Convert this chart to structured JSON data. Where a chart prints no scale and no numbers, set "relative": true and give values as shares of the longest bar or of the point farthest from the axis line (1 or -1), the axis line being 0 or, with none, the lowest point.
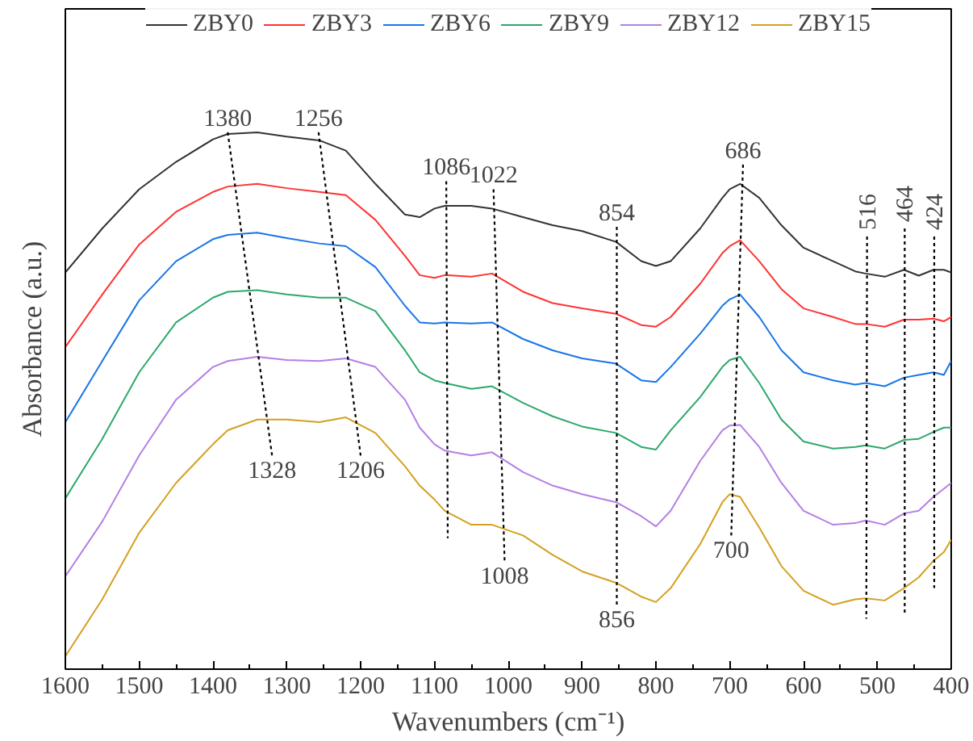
{
  "chart_data": {
    "type": "line",
    "relative": true,
    "legend": "top",
    "xlabel": "Wavenumbers (cm⁻¹)",
    "ylabel": "Absorbance (a.u.)",
    "xlim": [
      1600,
      400
    ],
    "xticks": [
      1600,
      1500,
      1400,
      1300,
      1200,
      1100,
      1000,
      900,
      800,
      700,
      600,
      500,
      400
    ],
    "x": [
      1600,
      1550,
      1500,
      1450,
      1400,
      1380,
      1340,
      1300,
      1256,
      1220,
      1180,
      1140,
      1120,
      1100,
      1086,
      1050,
      1022,
      980,
      940,
      900,
      854,
      820,
      800,
      780,
      740,
      710,
      700,
      686,
      660,
      630,
      600,
      560,
      530,
      516,
      490,
      464,
      444,
      424,
      410,
      400
    ],
    "series": [
      {
        "name": "ZBY0",
        "color": "#333333",
        "values": [
          0.739,
          0.821,
          0.894,
          0.945,
          0.987,
          0.997,
          1.0,
          0.992,
          0.985,
          0.966,
          0.904,
          0.847,
          0.842,
          0.858,
          0.863,
          0.863,
          0.858,
          0.842,
          0.827,
          0.816,
          0.796,
          0.76,
          0.751,
          0.76,
          0.821,
          0.878,
          0.894,
          0.904,
          0.878,
          0.827,
          0.785,
          0.76,
          0.741,
          0.737,
          0.731,
          0.744,
          0.733,
          0.744,
          0.744,
          0.739
        ]
      },
      {
        "name": "ZBY3",
        "color": "#ff3333",
        "values": [
          0.6,
          0.698,
          0.791,
          0.852,
          0.889,
          0.899,
          0.904,
          0.896,
          0.889,
          0.883,
          0.837,
          0.77,
          0.734,
          0.729,
          0.734,
          0.731,
          0.737,
          0.703,
          0.682,
          0.672,
          0.662,
          0.641,
          0.638,
          0.656,
          0.718,
          0.775,
          0.788,
          0.799,
          0.76,
          0.708,
          0.672,
          0.656,
          0.643,
          0.643,
          0.638,
          0.651,
          0.651,
          0.653,
          0.648,
          0.656
        ]
      },
      {
        "name": "ZBY6",
        "color": "#1a75e8",
        "values": [
          0.46,
          0.574,
          0.687,
          0.76,
          0.801,
          0.809,
          0.813,
          0.803,
          0.793,
          0.788,
          0.749,
          0.677,
          0.646,
          0.644,
          0.646,
          0.644,
          0.646,
          0.615,
          0.594,
          0.579,
          0.569,
          0.538,
          0.535,
          0.563,
          0.625,
          0.677,
          0.689,
          0.698,
          0.656,
          0.594,
          0.553,
          0.538,
          0.53,
          0.533,
          0.527,
          0.543,
          0.548,
          0.553,
          0.548,
          0.574
        ]
      },
      {
        "name": "ZBY9",
        "color": "#2ca86a",
        "values": [
          0.318,
          0.429,
          0.553,
          0.646,
          0.692,
          0.703,
          0.706,
          0.698,
          0.692,
          0.692,
          0.667,
          0.594,
          0.553,
          0.538,
          0.533,
          0.522,
          0.527,
          0.496,
          0.471,
          0.452,
          0.44,
          0.414,
          0.409,
          0.445,
          0.507,
          0.563,
          0.576,
          0.582,
          0.533,
          0.465,
          0.424,
          0.411,
          0.414,
          0.417,
          0.411,
          0.427,
          0.429,
          0.442,
          0.45,
          0.45
        ]
      },
      {
        "name": "ZBY12",
        "color": "#b47fe6",
        "values": [
          0.173,
          0.275,
          0.398,
          0.502,
          0.563,
          0.574,
          0.582,
          0.576,
          0.574,
          0.579,
          0.563,
          0.502,
          0.45,
          0.419,
          0.407,
          0.398,
          0.404,
          0.367,
          0.342,
          0.326,
          0.311,
          0.285,
          0.266,
          0.295,
          0.388,
          0.445,
          0.454,
          0.455,
          0.414,
          0.347,
          0.295,
          0.269,
          0.272,
          0.277,
          0.269,
          0.29,
          0.295,
          0.321,
          0.336,
          0.347
        ]
      },
      {
        "name": "ZBY15",
        "color": "#d4a020",
        "values": [
          0.024,
          0.13,
          0.254,
          0.347,
          0.419,
          0.445,
          0.465,
          0.465,
          0.46,
          0.469,
          0.44,
          0.378,
          0.342,
          0.316,
          0.295,
          0.269,
          0.269,
          0.249,
          0.213,
          0.182,
          0.161,
          0.135,
          0.125,
          0.151,
          0.233,
          0.311,
          0.326,
          0.321,
          0.264,
          0.192,
          0.146,
          0.12,
          0.13,
          0.132,
          0.128,
          0.151,
          0.171,
          0.202,
          0.218,
          0.241
        ]
      },
      {
        "type": "line",
        "line_style": "dotted",
        "color": "#000000",
        "x": [
          1380,
          1320
        ],
        "values": [
          1.0,
          0.398
        ]
      },
      {
        "type": "line",
        "line_style": "dotted",
        "color": "#000000",
        "x": [
          1257,
          1200
        ],
        "values": [
          1.0,
          0.398
        ]
      },
      {
        "type": "line",
        "line_style": "dotted",
        "color": "#000000",
        "x": [
          1084,
          1082
        ],
        "values": [
          0.909,
          0.244
        ]
      },
      {
        "type": "line",
        "line_style": "dotted",
        "color": "#000000",
        "x": [
          1020,
          1005
        ],
        "values": [
          0.894,
          0.202
        ]
      },
      {
        "type": "line",
        "line_style": "dotted",
        "color": "#000000",
        "x": [
          853,
          853
        ],
        "values": [
          0.824,
          0.12
        ]
      },
      {
        "type": "line",
        "line_style": "dotted",
        "color": "#000000",
        "x": [
          682,
          698
        ],
        "values": [
          0.94,
          0.249
        ]
      },
      {
        "type": "line",
        "line_style": "dotted",
        "color": "#000000",
        "x": [
          514,
          515
        ],
        "values": [
          0.806,
          0.094
        ]
      },
      {
        "type": "line",
        "line_style": "dotted",
        "color": "#000000",
        "x": [
          463,
          463
        ],
        "values": [
          0.821,
          0.104
        ]
      },
      {
        "type": "line",
        "line_style": "dotted",
        "color": "#000000",
        "x": [
          423,
          423
        ],
        "values": [
          0.806,
          0.151
        ]
      }
    ],
    "annotations": [
      {
        "text": "1380",
        "x": 1380,
        "y": 1.0
      },
      {
        "text": "1256",
        "x": 1257,
        "y": 1.0
      },
      {
        "text": "1086",
        "x": 1084,
        "y": 0.909
      },
      {
        "text": "1022",
        "x": 1020,
        "y": 0.894
      },
      {
        "text": "854",
        "x": 853,
        "y": 0.824
      },
      {
        "text": "686",
        "x": 682,
        "y": 0.94
      },
      {
        "text": "516",
        "x": 514,
        "y": 0.806
      },
      {
        "text": "464",
        "x": 463,
        "y": 0.821
      },
      {
        "text": "424",
        "x": 423,
        "y": 0.806
      },
      {
        "text": "1328",
        "x": 1320,
        "y": 0.398
      },
      {
        "text": "1206",
        "x": 1200,
        "y": 0.398
      },
      {
        "text": "1008",
        "x": 1005,
        "y": 0.202
      },
      {
        "text": "856",
        "x": 853,
        "y": 0.12
      },
      {
        "text": "700",
        "x": 698,
        "y": 0.249
      }
    ]
  }
}
